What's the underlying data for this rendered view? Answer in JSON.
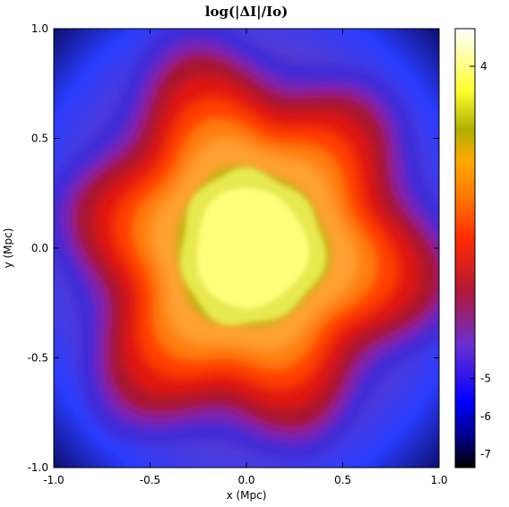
{
  "chart_data": {
    "type": "heatmap",
    "title": "log(|ΔI|/Io)",
    "xlabel": "x (Mpc)",
    "ylabel": "y (Mpc)",
    "xlim": [
      -1.0,
      1.0
    ],
    "ylim": [
      -1.0,
      1.0
    ],
    "x_ticks": [
      "-1.0",
      "-0.5",
      "0.0",
      "0.5",
      "1.0"
    ],
    "y_ticks": [
      "-1.0",
      "-0.5",
      "0.0",
      "0.5",
      "1.0"
    ],
    "x_tick_values": [
      -1.0,
      -0.5,
      0.0,
      0.5,
      1.0
    ],
    "y_tick_values": [
      -1.0,
      -0.5,
      0.0,
      0.5,
      1.0
    ],
    "colorbar": {
      "range": [
        -7.35,
        4.25
      ],
      "ticks": [
        "4",
        "-5",
        "-6",
        "-7"
      ],
      "tick_values": [
        4,
        -5,
        -6,
        -7
      ],
      "colors": [
        "#000000",
        "#0000ff",
        "#7a28c0",
        "#c41818",
        "#ff4000",
        "#ff9500",
        "#c8c800",
        "#ffff55",
        "#ffffff"
      ]
    },
    "features": {
      "core_center": [
        0.02,
        0.0
      ],
      "core_radius_mpc": 0.3,
      "peak_value": 4.0,
      "background_value": -7.0,
      "pattern": "wavy concentric contours, six-lobed outer rings"
    },
    "grid": false,
    "legend": "colorbar-right"
  }
}
